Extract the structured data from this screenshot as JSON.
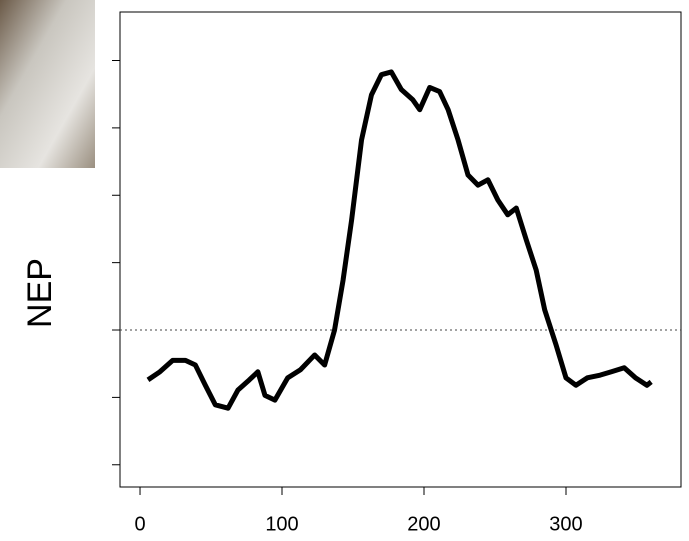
{
  "chart_data": {
    "type": "line",
    "y_label": "NEP",
    "x": [
      5.6,
      14,
      23,
      32,
      39,
      46,
      53,
      62,
      69,
      77,
      83,
      88,
      95,
      104,
      113,
      123,
      130,
      137,
      143,
      149,
      156,
      163,
      170,
      177,
      184,
      192,
      197,
      204,
      211,
      217,
      224,
      231,
      238,
      245,
      252,
      259,
      265,
      272,
      279,
      285,
      293,
      300,
      307,
      315,
      324,
      332,
      341,
      349,
      357,
      360
    ],
    "series": [
      {
        "color": "#000000",
        "values": [
          -0.74,
          -0.62,
          -0.45,
          -0.45,
          -0.52,
          -0.82,
          -1.11,
          -1.16,
          -0.89,
          -0.74,
          -0.62,
          -0.97,
          -1.04,
          -0.71,
          -0.59,
          -0.37,
          -0.52,
          0,
          0.74,
          1.63,
          2.82,
          3.49,
          3.79,
          3.83,
          3.57,
          3.42,
          3.27,
          3.6,
          3.54,
          3.27,
          2.82,
          2.3,
          2.15,
          2.23,
          1.93,
          1.71,
          1.81,
          1.34,
          0.89,
          0.3,
          -0.22,
          -0.71,
          -0.82,
          -0.71,
          -0.67,
          -0.62,
          -0.56,
          -0.71,
          -0.82,
          -0.77
        ]
      }
    ],
    "xlim": [
      -14.1,
      381
    ],
    "ylim": [
      -2.33,
      4.72
    ],
    "xticks": [
      0,
      100,
      200,
      300
    ],
    "yticks": [
      -2,
      -1,
      0,
      1,
      2,
      3,
      4
    ],
    "reference_line": 0
  }
}
